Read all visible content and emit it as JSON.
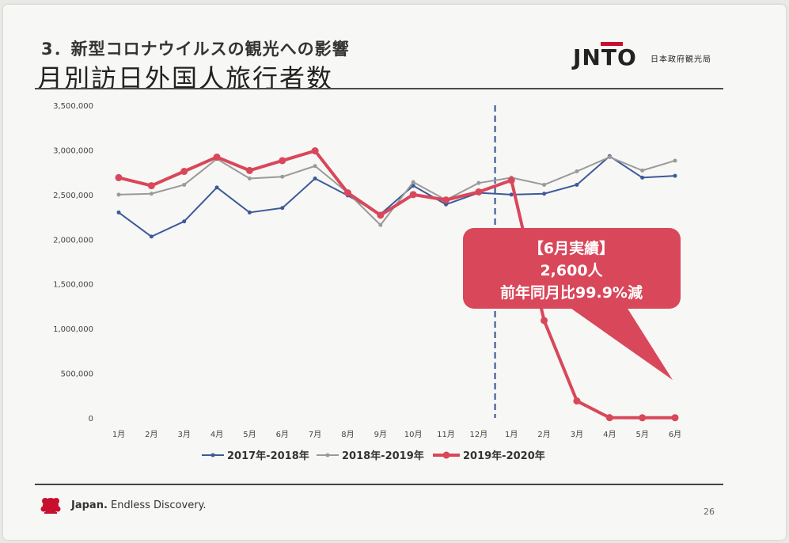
{
  "header": {
    "section_title": "3．新型コロナウイルスの観光への影響",
    "main_title": "月別訪日外国人旅行者数",
    "logo_text": "JNTO",
    "logo_subtitle": "日本政府観光局"
  },
  "footer": {
    "brand_bold": "Japan.",
    "brand_rest": " Endless Discovery.",
    "page_number": "26"
  },
  "callout": {
    "line1": "【6月実績】",
    "line2": "2,600人",
    "line3": "前年同月比99.9%減",
    "color": "#d9475a"
  },
  "chart_data": {
    "type": "line",
    "categories": [
      "1月",
      "2月",
      "3月",
      "4月",
      "5月",
      "6月",
      "7月",
      "8月",
      "9月",
      "10月",
      "11月",
      "12月",
      "1月",
      "2月",
      "3月",
      "4月",
      "5月",
      "6月"
    ],
    "ylim": [
      0,
      3500000
    ],
    "y_ticks": [
      "0",
      "500,000",
      "1,000,000",
      "1,500,000",
      "2,000,000",
      "2,500,000",
      "3,000,000",
      "3,500,000"
    ],
    "y_tick_values": [
      0,
      500000,
      1000000,
      1500000,
      2000000,
      2500000,
      3000000,
      3500000
    ],
    "divider_after_index": 11,
    "grid": false,
    "legend_position": "bottom",
    "series": [
      {
        "name": "2017年-2018年",
        "color": "#3c5a99",
        "values": [
          2300000,
          2030000,
          2200000,
          2580000,
          2300000,
          2350000,
          2680000,
          2490000,
          2280000,
          2600000,
          2390000,
          2520000,
          2500000,
          2510000,
          2610000,
          2930000,
          2690000,
          2710000
        ]
      },
      {
        "name": "2018年-2019年",
        "color": "#9a9a9a",
        "values": [
          2500000,
          2510000,
          2610000,
          2900000,
          2680000,
          2700000,
          2820000,
          2520000,
          2160000,
          2640000,
          2440000,
          2630000,
          2690000,
          2610000,
          2760000,
          2920000,
          2770000,
          2880000
        ]
      },
      {
        "name": "2019年-2020年",
        "color": "#d9475a",
        "values": [
          2690000,
          2600000,
          2760000,
          2920000,
          2770000,
          2880000,
          2990000,
          2520000,
          2270000,
          2500000,
          2440000,
          2530000,
          2660000,
          1090000,
          190000,
          2900,
          1700,
          2600
        ]
      }
    ]
  }
}
